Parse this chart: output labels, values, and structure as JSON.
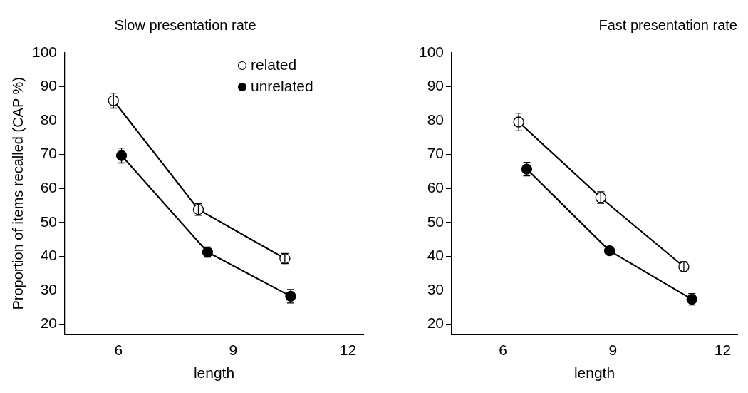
{
  "chart_data": [
    {
      "type": "line",
      "title": "Slow presentation rate",
      "xlabel": "length",
      "ylabel": "Proportion of items recalled (CAP %)",
      "xlim": [
        4.6,
        12.4
      ],
      "xticks": [
        6,
        9,
        12
      ],
      "ylim": [
        17,
        100
      ],
      "yticks": [
        20,
        30,
        40,
        50,
        60,
        70,
        80,
        90,
        100
      ],
      "grid": false,
      "legend": "top right",
      "marker": "circle",
      "line_style": "solid",
      "series": [
        {
          "name": "related",
          "color": "#ffffff",
          "x": [
            5.87,
            8.09,
            10.35
          ],
          "values": [
            85.9,
            53.8,
            39.3
          ],
          "errors": [
            2.2,
            1.7,
            1.5
          ]
        },
        {
          "name": "unrelated",
          "color": "#000000",
          "x": [
            6.08,
            8.33,
            10.5
          ],
          "values": [
            69.7,
            41.2,
            28.2
          ],
          "errors": [
            2.2,
            1.5,
            2.0
          ]
        }
      ]
    },
    {
      "type": "line",
      "title": "Fast presentation rate",
      "xlabel": "length",
      "xlim": [
        4.6,
        12.4
      ],
      "xticks": [
        6,
        9,
        12
      ],
      "ylim": [
        17,
        100
      ],
      "yticks": [
        20,
        30,
        40,
        50,
        60,
        70,
        80,
        90,
        100
      ],
      "grid": false,
      "marker": "circle",
      "line_style": "solid",
      "series": [
        {
          "color": "#ffffff",
          "x": [
            6.43,
            8.67,
            10.94
          ],
          "values": [
            79.6,
            57.3,
            36.9
          ],
          "errors": [
            2.6,
            1.7,
            1.5
          ]
        },
        {
          "color": "#000000",
          "x": [
            6.65,
            8.91,
            11.16
          ],
          "values": [
            65.7,
            41.6,
            27.3
          ],
          "errors": [
            2.0,
            1.2,
            1.7
          ]
        }
      ]
    }
  ]
}
